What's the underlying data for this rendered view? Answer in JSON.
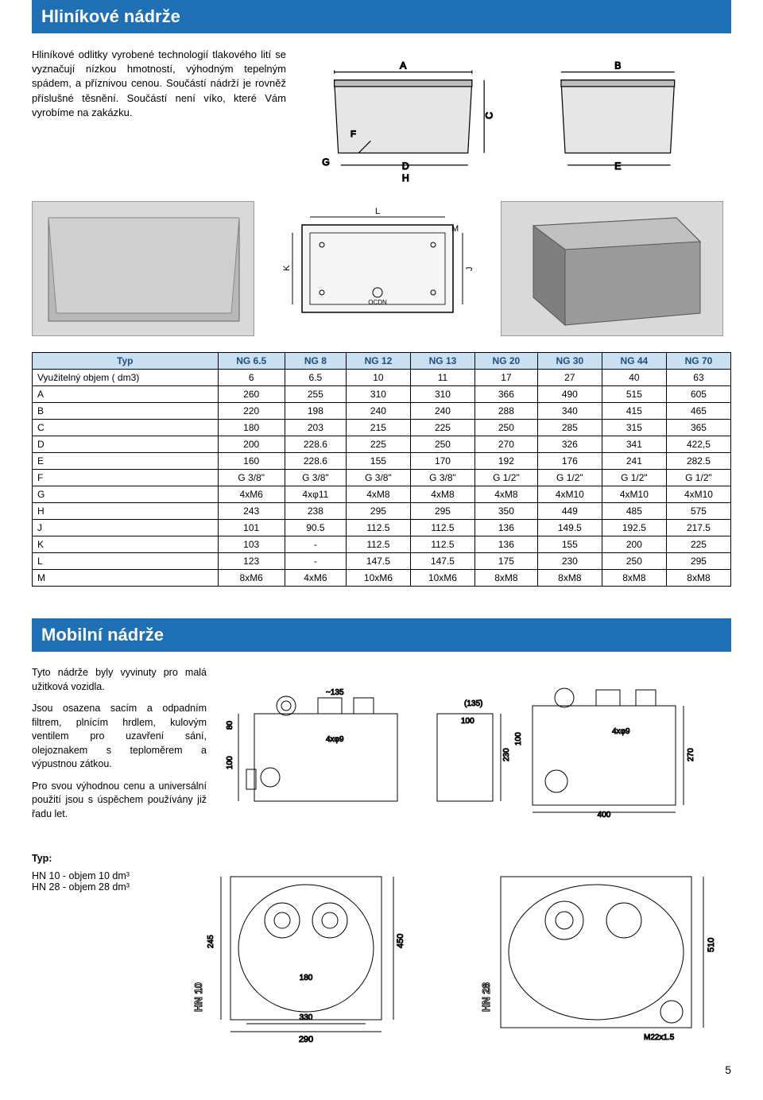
{
  "section1": {
    "title": "Hliníkové nádrže",
    "intro": "Hliníkové odlitky vyrobené technologií tlakového lití se vyznačují nízkou hmotností, výhodným tepelným spádem, a příznivou cenou. Součástí nádrží je rovněž příslušné těsnění. Součástí není víko, které Vám vyrobíme na zakázku.",
    "dim_labels": [
      "A",
      "B",
      "C",
      "D",
      "E",
      "F",
      "G",
      "H",
      "J",
      "K",
      "L",
      "M"
    ]
  },
  "spec_table": {
    "headers": [
      "Typ",
      "NG 6.5",
      "NG 8",
      "NG 12",
      "NG 13",
      "NG 20",
      "NG 30",
      "NG 44",
      "NG 70"
    ],
    "rows": [
      [
        "Využitelný objem ( dm3)",
        "6",
        "6.5",
        "10",
        "11",
        "17",
        "27",
        "40",
        "63"
      ],
      [
        "A",
        "260",
        "255",
        "310",
        "310",
        "366",
        "490",
        "515",
        "605"
      ],
      [
        "B",
        "220",
        "198",
        "240",
        "240",
        "288",
        "340",
        "415",
        "465"
      ],
      [
        "C",
        "180",
        "203",
        "215",
        "225",
        "250",
        "285",
        "315",
        "365"
      ],
      [
        "D",
        "200",
        "228.6",
        "225",
        "250",
        "270",
        "326",
        "341",
        "422,5"
      ],
      [
        "E",
        "160",
        "228.6",
        "155",
        "170",
        "192",
        "176",
        "241",
        "282.5"
      ],
      [
        "F",
        "G 3/8\"",
        "G 3/8\"",
        "G 3/8\"",
        "G 3/8\"",
        "G 1/2\"",
        "G 1/2\"",
        "G 1/2\"",
        "G 1/2\""
      ],
      [
        "G",
        "4xM6",
        "4xφ11",
        "4xM8",
        "4xM8",
        "4xM8",
        "4xM10",
        "4xM10",
        "4xM10"
      ],
      [
        "H",
        "243",
        "238",
        "295",
        "295",
        "350",
        "449",
        "485",
        "575"
      ],
      [
        "J",
        "101",
        "90.5",
        "112.5",
        "112.5",
        "136",
        "149.5",
        "192.5",
        "217.5"
      ],
      [
        "K",
        "103",
        "-",
        "112.5",
        "112.5",
        "136",
        "155",
        "200",
        "225"
      ],
      [
        "L",
        "123",
        "-",
        "147.5",
        "147.5",
        "175",
        "230",
        "250",
        "295"
      ],
      [
        "M",
        "8xM6",
        "4xM6",
        "10xM6",
        "10xM6",
        "8xM8",
        "8xM8",
        "8xM8",
        "8xM8"
      ]
    ],
    "header_bg": "#c9dff2",
    "header_color": "#1f4e79",
    "border_color": "#000000",
    "fontsize": 12
  },
  "section2": {
    "title": "Mobilní nádrže",
    "p1": "Tyto nádrže byly vyvinuty pro malá užitková vozidla.",
    "p2": "Jsou osazena sacím a odpadním filtrem, plnícím hrdlem, kulovým ventilem pro uzavření sání, olejoznakem s teploměrem a výpustnou zátkou.",
    "p3": "Pro svou výhodnou cenu a universální použití jsou s úspěchem používány již řadu let.",
    "diag1": {
      "label_left": "HN 10",
      "dims": {
        "w": "290",
        "inner_w": "330",
        "h": "450",
        "inner_h": "180",
        "t": "~135",
        "side_h": "230",
        "side_t": "100",
        "holes": "4xφ9",
        "top_off": "80",
        "top_h": "100",
        "side_135": "(135)",
        "side_245": "245"
      }
    },
    "diag2": {
      "label_left": "HN 28",
      "dims": {
        "w": "400",
        "h": "510",
        "side_h": "270",
        "side_t": "100",
        "holes": "4xφ9",
        "thread": "M22x1.5",
        "side_100": "100"
      }
    }
  },
  "typ": {
    "label": "Typ:",
    "item1": "HN 10 - objem 10 dm³",
    "item2": "HN 28 - objem 28 dm³"
  },
  "page_number": "5",
  "colors": {
    "blue_bar": "#1f6fb5",
    "white": "#ffffff",
    "line": "#000000",
    "gray_fill": "#d0d0d0"
  }
}
